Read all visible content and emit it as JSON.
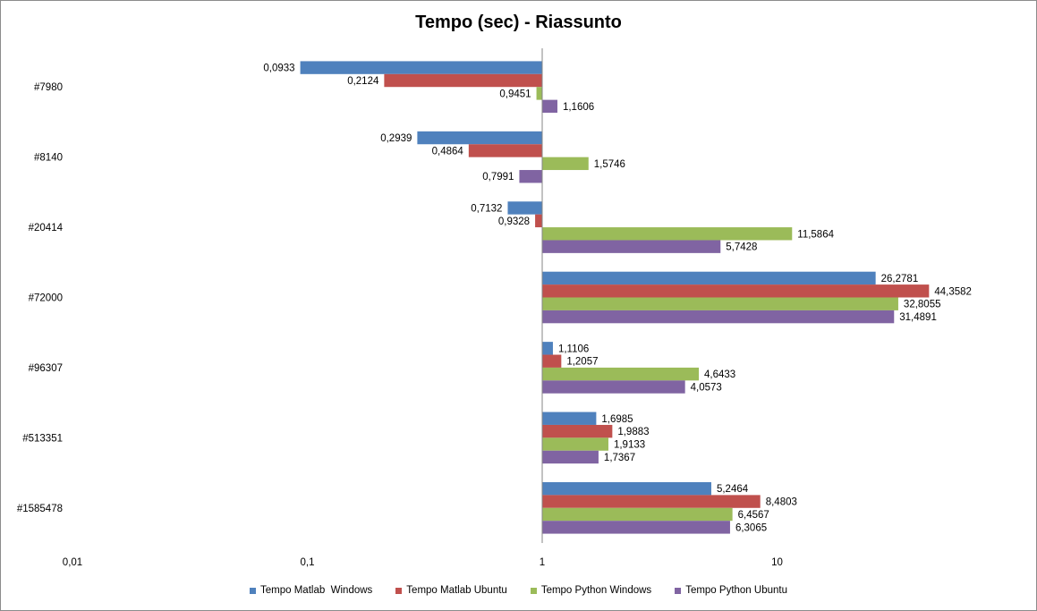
{
  "chart_data": {
    "type": "bar",
    "orientation": "horizontal",
    "title": "Tempo (sec) - Riassunto",
    "x_scale": "log",
    "xlim": [
      0.01,
      100
    ],
    "x_ticks": [
      0.01,
      0.1,
      1,
      10
    ],
    "x_tick_labels": [
      "0,01",
      "0,1",
      "1",
      "10"
    ],
    "base_value": 1,
    "categories": [
      "#7980",
      "#8140",
      "#20414",
      "#72000",
      "#96307",
      "#513351",
      "#1585478"
    ],
    "series": [
      {
        "name": "Tempo Matlab  Windows",
        "color": "#4f81bd",
        "values": [
          0.0933,
          0.2939,
          0.7132,
          26.2781,
          1.1106,
          1.6985,
          5.2464
        ],
        "labels": [
          "0,0933",
          "0,2939",
          "0,7132",
          "26,2781",
          "1,1106",
          "1,6985",
          "5,2464"
        ]
      },
      {
        "name": "Tempo Matlab Ubuntu",
        "color": "#c0504d",
        "values": [
          0.2124,
          0.4864,
          0.9328,
          44.3582,
          1.2057,
          1.9883,
          8.4803
        ],
        "labels": [
          "0,2124",
          "0,4864",
          "0,9328",
          "44,3582",
          "1,2057",
          "1,9883",
          "8,4803"
        ]
      },
      {
        "name": "Tempo Python Windows",
        "color": "#9bbb59",
        "values": [
          0.9451,
          1.5746,
          11.5864,
          32.8055,
          4.6433,
          1.9133,
          6.4567
        ],
        "labels": [
          "0,9451",
          "1,5746",
          "11,5864",
          "32,8055",
          "4,6433",
          "1,9133",
          "6,4567"
        ]
      },
      {
        "name": "Tempo Python Ubuntu",
        "color": "#8064a2",
        "values": [
          1.1606,
          0.7991,
          5.7428,
          31.4891,
          4.0573,
          1.7367,
          6.3065
        ],
        "labels": [
          "1,1606",
          "0,7991",
          "5,7428",
          "31,4891",
          "4,0573",
          "1,7367",
          "6,3065"
        ]
      }
    ],
    "grid": false,
    "legend_position": "bottom"
  }
}
